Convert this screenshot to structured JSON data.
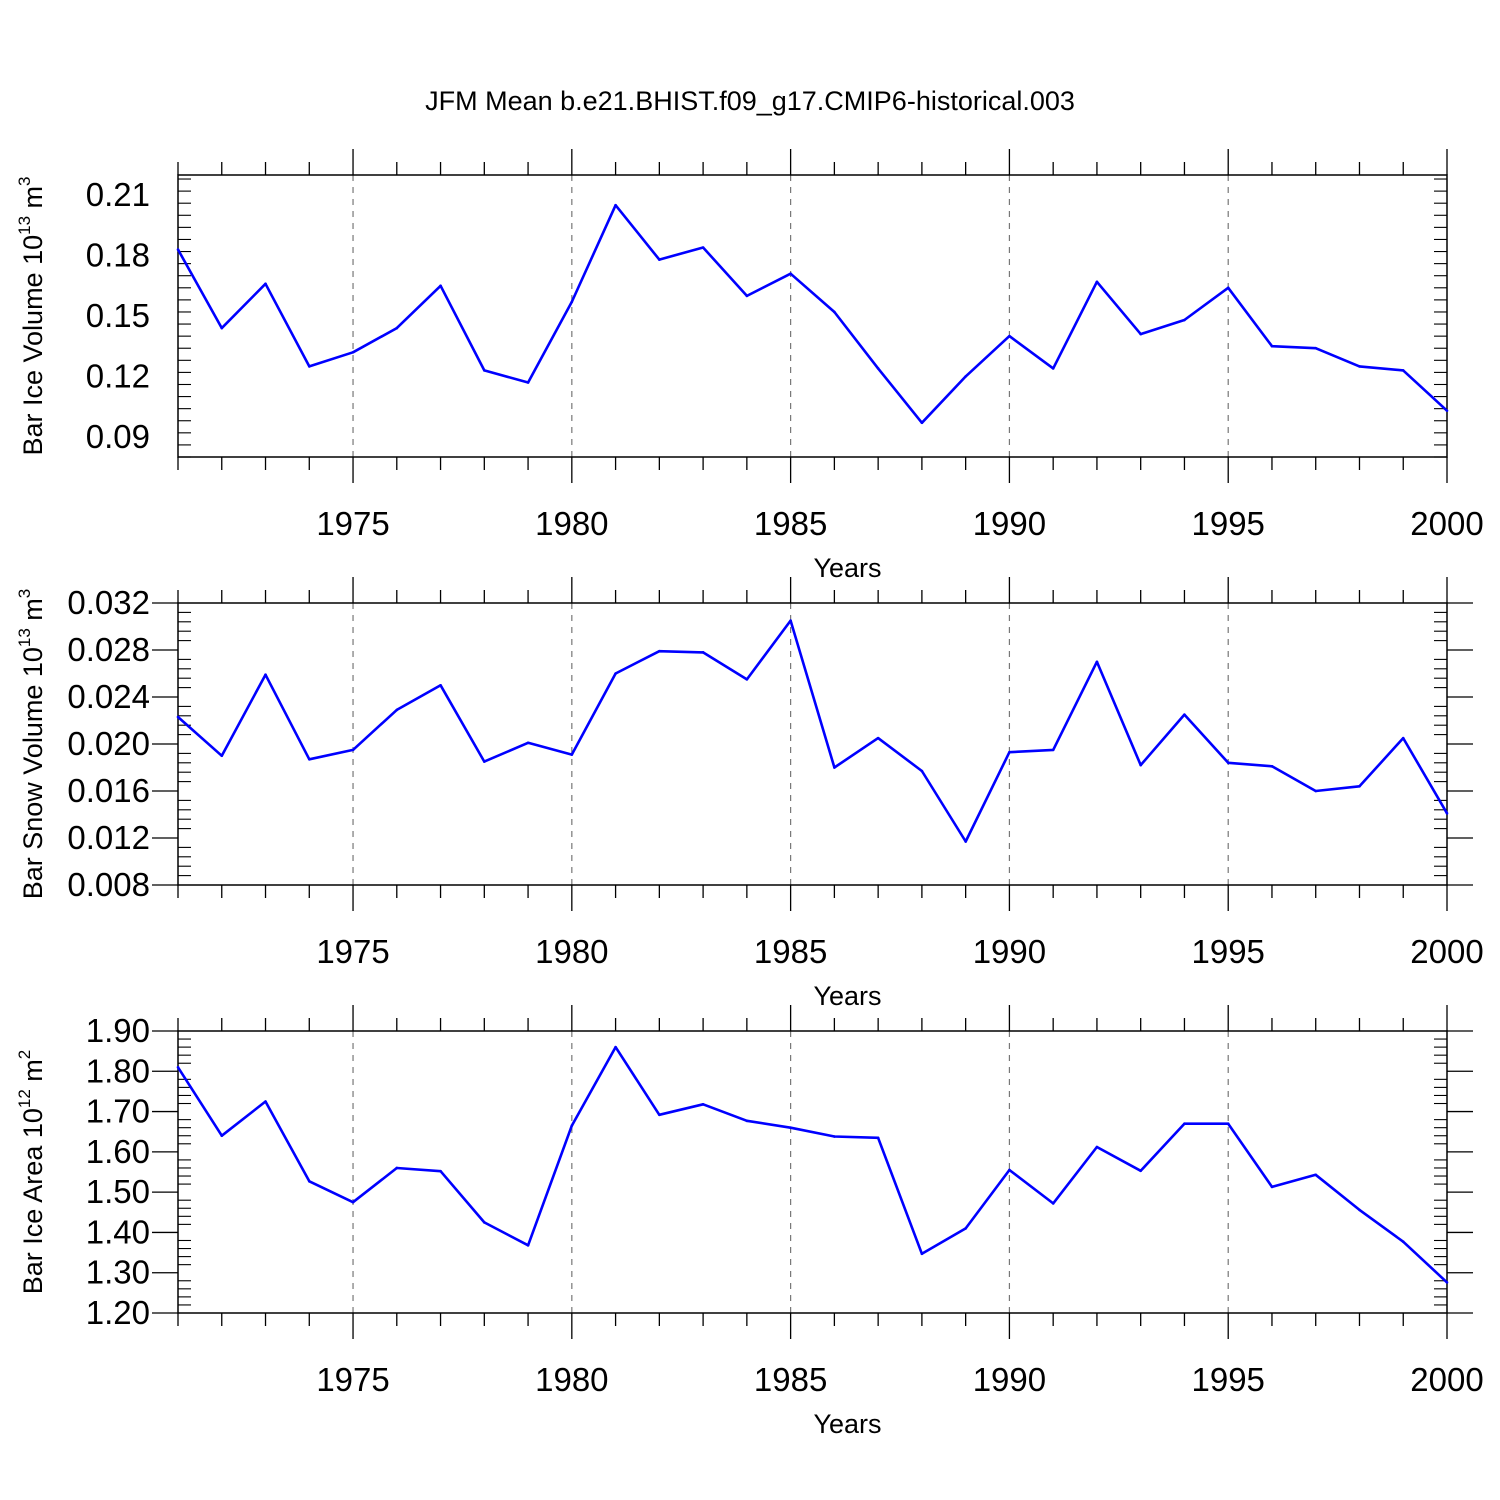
{
  "title": "JFM Mean b.e21.BHIST.f09_g17.CMIP6-historical.003",
  "colors": {
    "line": "#0000ff",
    "axis": "#000000",
    "grid": "#777777"
  },
  "chart_data": [
    {
      "type": "line",
      "xlabel": "Years",
      "ylabel_parts": {
        "base": "Bar Ice Volume 10",
        "exp": "13",
        "unit": " m",
        "unit_exp": "3"
      },
      "x": [
        1971,
        1972,
        1973,
        1974,
        1975,
        1976,
        1977,
        1978,
        1979,
        1980,
        1981,
        1982,
        1983,
        1984,
        1985,
        1986,
        1987,
        1988,
        1989,
        1990,
        1991,
        1992,
        1993,
        1994,
        1995,
        1996,
        1997,
        1998,
        1999,
        2000
      ],
      "values": [
        0.183,
        0.144,
        0.166,
        0.125,
        0.132,
        0.144,
        0.165,
        0.123,
        0.117,
        0.157,
        0.205,
        0.178,
        0.184,
        0.16,
        0.171,
        0.152,
        0.124,
        0.097,
        0.12,
        0.14,
        0.124,
        0.167,
        0.141,
        0.148,
        0.164,
        0.135,
        0.134,
        0.125,
        0.123,
        0.103
      ],
      "ylim": [
        0.08,
        0.22
      ],
      "yticks": [
        0.09,
        0.12,
        0.15,
        0.18,
        0.21
      ],
      "ytick_labels": [
        "0.09",
        "0.12",
        "0.15",
        "0.18",
        "0.21"
      ],
      "xlim": [
        1971,
        2000
      ],
      "xticks": [
        1975,
        1980,
        1985,
        1990,
        1995,
        2000
      ],
      "xtick_labels": [
        "1975",
        "1980",
        "1985",
        "1990",
        "1995",
        "2000"
      ],
      "grid": "vertical dashed at major x ticks"
    },
    {
      "type": "line",
      "xlabel": "Years",
      "ylabel_parts": {
        "base": "Bar Snow Volume 10",
        "exp": "13",
        "unit": " m",
        "unit_exp": "3"
      },
      "x": [
        1971,
        1972,
        1973,
        1974,
        1975,
        1976,
        1977,
        1978,
        1979,
        1980,
        1981,
        1982,
        1983,
        1984,
        1985,
        1986,
        1987,
        1988,
        1989,
        1990,
        1991,
        1992,
        1993,
        1994,
        1995,
        1996,
        1997,
        1998,
        1999,
        2000
      ],
      "values": [
        0.0223,
        0.019,
        0.0259,
        0.0187,
        0.0195,
        0.0229,
        0.025,
        0.0185,
        0.0201,
        0.0191,
        0.026,
        0.0279,
        0.0278,
        0.0255,
        0.0305,
        0.018,
        0.0205,
        0.0177,
        0.0117,
        0.0193,
        0.0195,
        0.027,
        0.0182,
        0.0225,
        0.0184,
        0.0181,
        0.016,
        0.0164,
        0.0205,
        0.0141
      ],
      "ylim": [
        0.008,
        0.032
      ],
      "yticks": [
        0.008,
        0.012,
        0.016,
        0.02,
        0.024,
        0.028,
        0.032
      ],
      "ytick_labels": [
        "0.008",
        "0.012",
        "0.016",
        "0.020",
        "0.024",
        "0.028",
        "0.032"
      ],
      "xlim": [
        1971,
        2000
      ],
      "xticks": [
        1975,
        1980,
        1985,
        1990,
        1995,
        2000
      ],
      "xtick_labels": [
        "1975",
        "1980",
        "1985",
        "1990",
        "1995",
        "2000"
      ],
      "grid": "vertical dashed at major x ticks"
    },
    {
      "type": "line",
      "xlabel": "Years",
      "ylabel_parts": {
        "base": "Bar Ice Area 10",
        "exp": "12",
        "unit": " m",
        "unit_exp": "2"
      },
      "x": [
        1971,
        1972,
        1973,
        1974,
        1975,
        1976,
        1977,
        1978,
        1979,
        1980,
        1981,
        1982,
        1983,
        1984,
        1985,
        1986,
        1987,
        1988,
        1989,
        1990,
        1991,
        1992,
        1993,
        1994,
        1995,
        1996,
        1997,
        1998,
        1999,
        2000
      ],
      "values": [
        1.81,
        1.64,
        1.725,
        1.527,
        1.475,
        1.56,
        1.552,
        1.425,
        1.368,
        1.665,
        1.86,
        1.692,
        1.718,
        1.677,
        1.66,
        1.638,
        1.635,
        1.347,
        1.41,
        1.555,
        1.472,
        1.612,
        1.553,
        1.67,
        1.67,
        1.513,
        1.543,
        1.456,
        1.377,
        1.276
      ],
      "ylim": [
        1.2,
        1.9
      ],
      "yticks": [
        1.2,
        1.3,
        1.4,
        1.5,
        1.6,
        1.7,
        1.8,
        1.9
      ],
      "ytick_labels": [
        "1.20",
        "1.30",
        "1.40",
        "1.50",
        "1.60",
        "1.70",
        "1.80",
        "1.90"
      ],
      "xlim": [
        1971,
        2000
      ],
      "xticks": [
        1975,
        1980,
        1985,
        1990,
        1995,
        2000
      ],
      "xtick_labels": [
        "1975",
        "1980",
        "1985",
        "1990",
        "1995",
        "2000"
      ],
      "grid": "vertical dashed at major x ticks"
    }
  ]
}
